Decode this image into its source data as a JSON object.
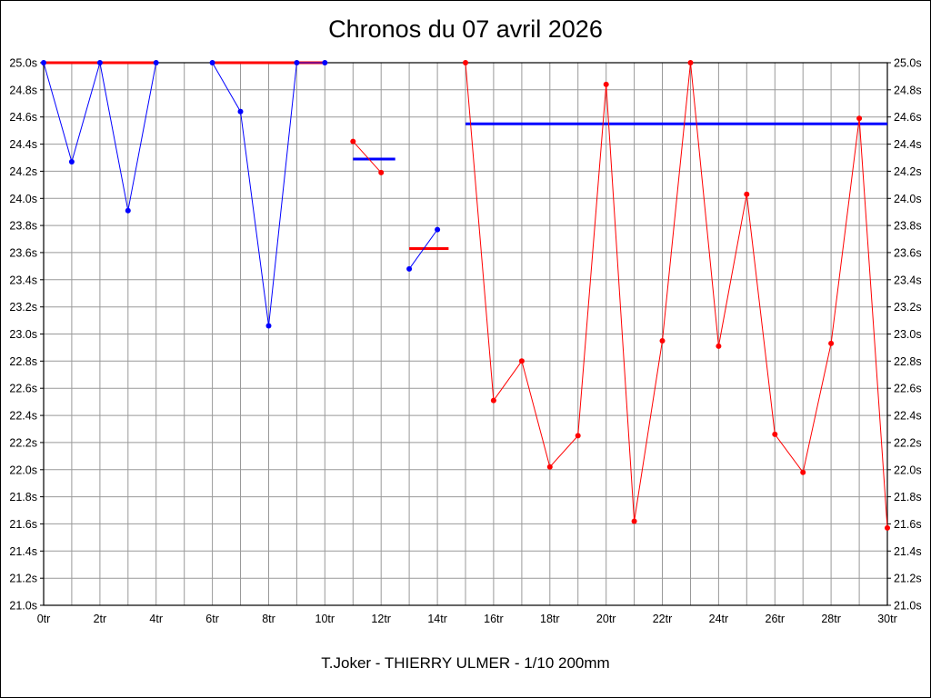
{
  "chart_data": {
    "type": "line",
    "title": "Chronos du 07 avril 2026",
    "footer": "T.Joker - THIERRY ULMER - 1/10 200mm",
    "x_unit": "tr",
    "y_unit": "s",
    "xlim": [
      0,
      30
    ],
    "ylim": [
      21.0,
      25.0
    ],
    "x_grid_step": 1,
    "y_tick_step": 0.2,
    "grid": true,
    "grid_color": "#999999",
    "frame_color": "#000000",
    "background_color": "#ffffff",
    "series_colors": {
      "blue": "#0000ff",
      "red": "#ff0000"
    },
    "y_tick_labels_top_to_bottom": [
      "25.0s",
      "24.8s",
      "24.6s",
      "24.4s",
      "24.2s",
      "24.0s",
      "23.8s",
      "23.6s",
      "23.4s",
      "23.2s",
      "23.0s",
      "22.8s",
      "22.6s",
      "22.4s",
      "22.2s",
      "22.0s",
      "21.8s",
      "21.6s",
      "21.4s",
      "21.2s",
      "21.0s"
    ],
    "x_tick_labels": [
      "0tr",
      "2tr",
      "4tr",
      "6tr",
      "8tr",
      "10tr",
      "12tr",
      "14tr",
      "16tr",
      "18tr",
      "20tr",
      "22tr",
      "24tr",
      "26tr",
      "28tr",
      "30tr"
    ],
    "x_tick_values": [
      0,
      2,
      4,
      6,
      8,
      10,
      12,
      14,
      16,
      18,
      20,
      22,
      24,
      26,
      28,
      30
    ],
    "series": [
      {
        "name": "blue-laps-run1",
        "color": "#0000ff",
        "points": [
          [
            0,
            25.0
          ],
          [
            1,
            24.27
          ],
          [
            2,
            25.0
          ],
          [
            3,
            23.91
          ],
          [
            4,
            25.0
          ]
        ]
      },
      {
        "name": "blue-laps-run2",
        "color": "#0000ff",
        "points": [
          [
            6,
            25.0
          ],
          [
            7,
            24.64
          ],
          [
            8,
            23.06
          ],
          [
            9,
            25.0
          ],
          [
            10,
            25.0
          ]
        ]
      },
      {
        "name": "red-laps-run3",
        "color": "#ff0000",
        "points": [
          [
            11,
            24.42
          ],
          [
            12,
            24.19
          ]
        ]
      },
      {
        "name": "blue-laps-run4",
        "color": "#0000ff",
        "points": [
          [
            13,
            23.48
          ],
          [
            14,
            23.77
          ]
        ]
      },
      {
        "name": "red-laps-run5",
        "color": "#ff0000",
        "points": [
          [
            15,
            25.0
          ],
          [
            16,
            22.51
          ],
          [
            17,
            22.8
          ],
          [
            18,
            22.02
          ],
          [
            19,
            22.25
          ],
          [
            20,
            24.84
          ],
          [
            21,
            21.62
          ],
          [
            22,
            22.95
          ],
          [
            23,
            25.0
          ],
          [
            24,
            22.91
          ],
          [
            25,
            24.03
          ],
          [
            26,
            22.26
          ],
          [
            27,
            21.98
          ],
          [
            28,
            22.93
          ],
          [
            29,
            24.59
          ],
          [
            30,
            21.57
          ]
        ]
      }
    ],
    "reference_lines": [
      {
        "name": "red-avg-run1",
        "color": "#ff0000",
        "y": 25.0,
        "x1": 0,
        "x2": 4
      },
      {
        "name": "red-avg-run2",
        "color": "#ff0000",
        "y": 25.0,
        "x1": 6,
        "x2": 10
      },
      {
        "name": "blue-avg-run3",
        "color": "#0000ff",
        "y": 24.29,
        "x1": 11,
        "x2": 12.5
      },
      {
        "name": "red-avg-run4",
        "color": "#ff0000",
        "y": 23.63,
        "x1": 13,
        "x2": 14.4
      },
      {
        "name": "blue-avg-run5",
        "color": "#0000ff",
        "y": 24.55,
        "x1": 15,
        "x2": 30
      }
    ]
  }
}
